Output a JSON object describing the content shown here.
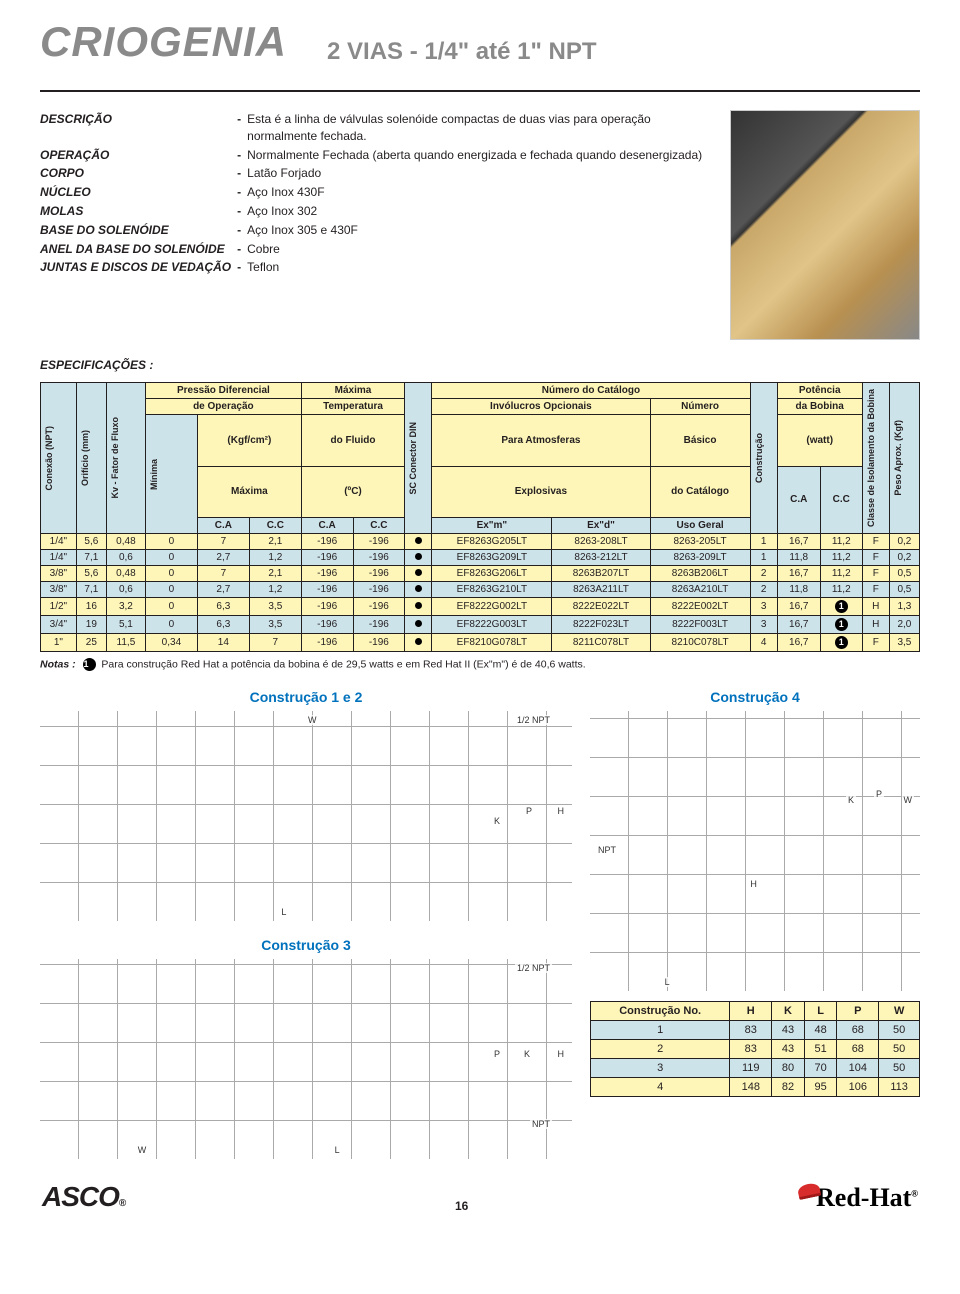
{
  "header": {
    "title": "CRIOGENIA",
    "subtitle": "2 VIAS - 1/4\" até 1\" NPT"
  },
  "description": {
    "rows": [
      {
        "label": "DESCRIÇÃO",
        "text": "Esta é a linha de válvulas solenóide compactas de duas vias para operação normalmente fechada."
      },
      {
        "label": "OPERAÇÃO",
        "text": "Normalmente Fechada (aberta quando energizada e fechada quando desenergizada)"
      },
      {
        "label": "CORPO",
        "text": "Latão Forjado"
      },
      {
        "label": "NÚCLEO",
        "text": "Aço Inox 430F"
      },
      {
        "label": "MOLAS",
        "text": "Aço Inox 302"
      },
      {
        "label": "BASE DO SOLENÓIDE",
        "text": "Aço Inox 305 e 430F"
      },
      {
        "label": "ANEL DA BASE DO SOLENÓIDE",
        "text": "Cobre"
      },
      {
        "label": "JUNTAS E DISCOS DE VEDAÇÃO",
        "text": "Teflon"
      }
    ]
  },
  "spec_title": "ESPECIFICAÇÕES :",
  "table": {
    "group_headers": {
      "pressao": "Pressão Diferencial",
      "maxima_top": "Máxima",
      "numero_cat": "Número do Catálogo",
      "de_operacao": "de Operação",
      "temperatura": "Temperatura",
      "involucros": "Invólucros Opcionais",
      "numero": "Número",
      "potencia": "Potência",
      "kgfcm2": "(Kgf/cm²)",
      "do_fluido": "do Fluido",
      "para_atm": "Para Atmosferas",
      "basico": "Básico",
      "da_bobina": "da Bobina",
      "maxima": "Máxima",
      "celsius": "(ºC)",
      "explosivas": "Explosivas",
      "do_catalogo": "do Catálogo",
      "watt": "(watt)",
      "ca": "C.A",
      "cc": "C.C",
      "exm": "Ex\"m\"",
      "exd": "Ex\"d\"",
      "uso_geral": "Uso Geral"
    },
    "vertical_headers": {
      "conexao": "Conexão (NPT)",
      "orificio": "Orifício (mm)",
      "kv": "Kv - Fator de Fluxo",
      "minima": "Mínima",
      "sc": "SC Conector DIN",
      "constr": "Construção",
      "classe": "Classe de Isolamento da Bobina",
      "peso": "Peso Aprox. (Kgf)"
    },
    "rows": [
      {
        "cls": "y",
        "c": [
          "1/4\"",
          "5,6",
          "0,48",
          "0",
          "7",
          "2,1",
          "-196",
          "-196",
          "●",
          "EF8263G205LT",
          "8263-208LT",
          "8263-205LT",
          "1",
          "16,7",
          "11,2",
          "F",
          "0,2"
        ]
      },
      {
        "cls": "b",
        "c": [
          "1/4\"",
          "7,1",
          "0,6",
          "0",
          "2,7",
          "1,2",
          "-196",
          "-196",
          "●",
          "EF8263G209LT",
          "8263-212LT",
          "8263-209LT",
          "1",
          "11,8",
          "11,2",
          "F",
          "0,2"
        ]
      },
      {
        "cls": "y",
        "c": [
          "3/8\"",
          "5,6",
          "0,48",
          "0",
          "7",
          "2,1",
          "-196",
          "-196",
          "●",
          "EF8263G206LT",
          "8263B207LT",
          "8263B206LT",
          "2",
          "16,7",
          "11,2",
          "F",
          "0,5"
        ]
      },
      {
        "cls": "b",
        "c": [
          "3/8\"",
          "7,1",
          "0,6",
          "0",
          "2,7",
          "1,2",
          "-196",
          "-196",
          "●",
          "EF8263G210LT",
          "8263A211LT",
          "8263A210LT",
          "2",
          "11,8",
          "11,2",
          "F",
          "0,5"
        ]
      },
      {
        "cls": "y",
        "c": [
          "1/2\"",
          "16",
          "3,2",
          "0",
          "6,3",
          "3,5",
          "-196",
          "-196",
          "●",
          "EF8222G002LT",
          "8222E022LT",
          "8222E002LT",
          "3",
          "16,7",
          "①",
          "H",
          "1,3"
        ]
      },
      {
        "cls": "b",
        "c": [
          "3/4\"",
          "19",
          "5,1",
          "0",
          "6,3",
          "3,5",
          "-196",
          "-196",
          "●",
          "EF8222G003LT",
          "8222F023LT",
          "8222F003LT",
          "3",
          "16,7",
          "①",
          "H",
          "2,0"
        ]
      },
      {
        "cls": "y",
        "c": [
          "1\"",
          "25",
          "11,5",
          "0,34",
          "14",
          "7",
          "-196",
          "-196",
          "●",
          "EF8210G078LT",
          "8211C078LT",
          "8210C078LT",
          "4",
          "16,7",
          "①",
          "F",
          "3,5"
        ]
      }
    ]
  },
  "notes": {
    "label": "Notas :",
    "n1": "Para construção Red Hat a potência da bobina é de 29,5 watts e em Red Hat II (Ex\"m\") é de 40,6 watts."
  },
  "diagrams": {
    "t12": "Construção 1 e 2",
    "t3": "Construção 3",
    "t4": "Construção 4",
    "labels": {
      "w": "W",
      "l": "L",
      "h": "H",
      "k": "K",
      "p": "P",
      "npt": "NPT",
      "half": "1/2 NPT"
    }
  },
  "dims": {
    "header": {
      "c": "Construção No.",
      "h": "H",
      "k": "K",
      "l": "L",
      "p": "P",
      "w": "W"
    },
    "rows": [
      {
        "cls": "b",
        "c": [
          "1",
          "83",
          "43",
          "48",
          "68",
          "50"
        ]
      },
      {
        "cls": "y",
        "c": [
          "2",
          "83",
          "43",
          "51",
          "68",
          "50"
        ]
      },
      {
        "cls": "b",
        "c": [
          "3",
          "119",
          "80",
          "70",
          "104",
          "50"
        ]
      },
      {
        "cls": "y",
        "c": [
          "4",
          "148",
          "82",
          "95",
          "106",
          "113"
        ]
      }
    ]
  },
  "footer": {
    "asco": "ASCO",
    "page": "16",
    "redhat": "Red-Hat"
  }
}
